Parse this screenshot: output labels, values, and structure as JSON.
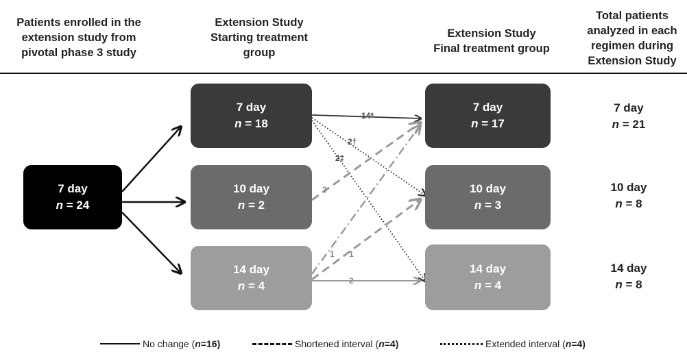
{
  "headers": {
    "col1": [
      "Patients enrolled in the",
      "extension study from",
      "pivotal phase 3 study"
    ],
    "col2": [
      "Extension Study",
      "Starting treatment",
      "group"
    ],
    "col3": [
      "Extension Study",
      "Final treatment group"
    ],
    "col4": [
      "Total patients",
      "analyzed in each",
      "regimen during",
      "Extension Study"
    ]
  },
  "pivotal": {
    "label": "7 day",
    "n": "24"
  },
  "starting": [
    {
      "label": "7 day",
      "n": "18"
    },
    {
      "label": "10 day",
      "n": "2"
    },
    {
      "label": "14 day",
      "n": "4"
    }
  ],
  "final": [
    {
      "label": "7 day",
      "n": "17"
    },
    {
      "label": "10 day",
      "n": "3"
    },
    {
      "label": "14 day",
      "n": "4"
    }
  ],
  "totals": [
    {
      "label": "7 day",
      "n": "21"
    },
    {
      "label": "10 day",
      "n": "8"
    },
    {
      "label": "14 day",
      "n": "8"
    }
  ],
  "flow_labels": {
    "seven_to_seven": "14*",
    "seven_to_ten": "2†",
    "seven_to_fourteen": "2‡",
    "ten_to_seven": "2",
    "fourteen_to_seven": "1",
    "fourteen_to_ten": "1",
    "fourteen_to_fourteen": "2"
  },
  "n_prefix": "n",
  "n_eq": " = ",
  "legend": {
    "no_change": "No change (",
    "no_change_n": "n",
    "no_change_val": "=16)",
    "shortened": "Shortened interval (",
    "shortened_n": "n",
    "shortened_val": "=4)",
    "extended": "Extended interval (",
    "extended_n": "n",
    "extended_val": "=4)"
  },
  "colors": {
    "pivotal": "#000000",
    "seven": "#3a3a3a",
    "ten": "#6b6b6b",
    "fourteen": "#9d9d9d",
    "dashed_arrow": "#9a9a9a",
    "solid_arrow": "#111111"
  }
}
